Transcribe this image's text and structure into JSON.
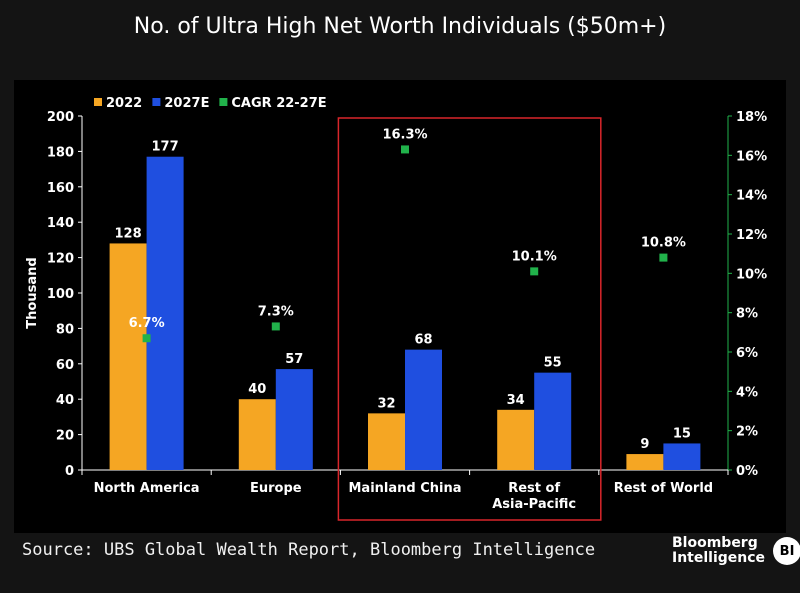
{
  "chart_data": {
    "type": "bar",
    "title": "No. of Ultra High Net Worth Individuals ($50m+)",
    "categories": [
      [
        "North America"
      ],
      [
        "Europe"
      ],
      [
        "Mainland China"
      ],
      [
        "Rest of",
        "Asia-Pacific"
      ],
      [
        "Rest of World"
      ]
    ],
    "series": [
      {
        "name": "2022",
        "type": "bar",
        "axis": "left",
        "color": "#f5a623",
        "values": [
          128,
          40,
          32,
          34,
          9
        ]
      },
      {
        "name": "2027E",
        "type": "bar",
        "axis": "left",
        "color": "#1f4fe0",
        "values": [
          177,
          57,
          68,
          55,
          15
        ]
      },
      {
        "name": "CAGR 22-27E",
        "type": "scatter",
        "axis": "right",
        "color": "#21b24b",
        "values": [
          6.7,
          7.3,
          16.3,
          10.1,
          10.8
        ],
        "labels": [
          "6.7%",
          "7.3%",
          "16.3%",
          "10.1%",
          "10.8%"
        ]
      }
    ],
    "ylabel": "Thousand",
    "ylim": [
      0,
      200
    ],
    "yticks": [
      "0",
      "20",
      "40",
      "60",
      "80",
      "100",
      "120",
      "140",
      "160",
      "180",
      "200"
    ],
    "y2lim": [
      0,
      18
    ],
    "y2ticks": [
      "0%",
      "2%",
      "4%",
      "6%",
      "8%",
      "10%",
      "12%",
      "14%",
      "16%",
      "18%"
    ],
    "legend_position": "top-left",
    "grid": false,
    "highlight": {
      "categories": [
        2,
        3
      ],
      "color": "#d9262b"
    }
  },
  "source": "Source: UBS Global Wealth Report, Bloomberg Intelligence",
  "brand": {
    "line1": "Bloomberg",
    "line2": "Intelligence",
    "badge": "BI"
  }
}
